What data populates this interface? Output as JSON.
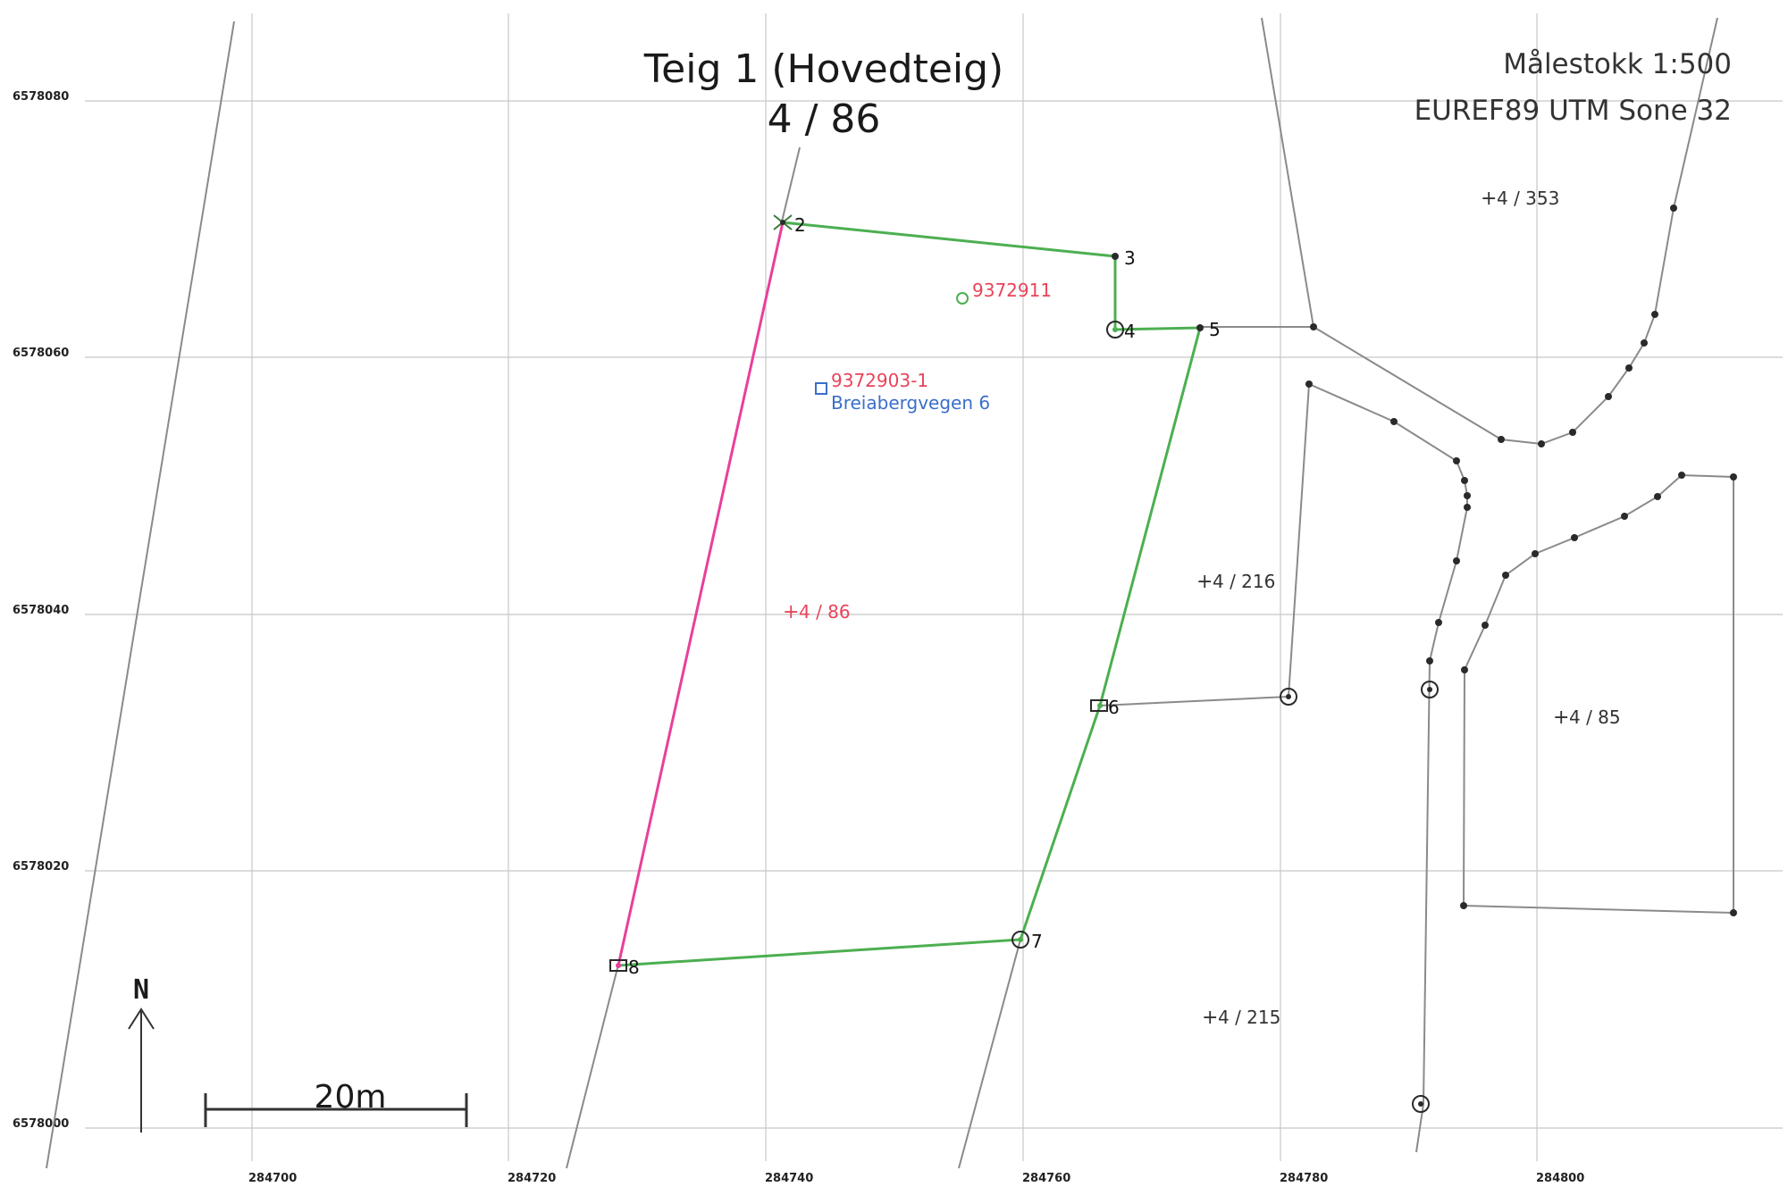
{
  "title": {
    "line1": "Teig 1 (Hovedteig)",
    "line2": "4 / 86"
  },
  "map_info": {
    "scale": "Målestokk 1:500",
    "crs": "EUREF89 UTM Sone 32"
  },
  "grid": {
    "x_labels": [
      "284700",
      "284720",
      "284740",
      "284760",
      "284780",
      "284800"
    ],
    "y_labels": [
      "6578080",
      "6578060",
      "6578040",
      "6578020",
      "6578000"
    ]
  },
  "boundary_points": [
    {
      "id": "2",
      "label": "2"
    },
    {
      "id": "3",
      "label": "3"
    },
    {
      "id": "4",
      "label": "4"
    },
    {
      "id": "5",
      "label": "5"
    },
    {
      "id": "6",
      "label": "6"
    },
    {
      "id": "7",
      "label": "7"
    },
    {
      "id": "8",
      "label": "8"
    }
  ],
  "parcel_labels": {
    "p353": "4 / 353",
    "p216": "4 / 216",
    "p85": "4 / 85",
    "p215": "4 / 215",
    "p86": "4 / 86"
  },
  "features": {
    "point_id": "9372911",
    "building_id": "9372903-1",
    "address": "Breiabergvegen 6"
  },
  "north_arrow": {
    "label": "N"
  },
  "scale_bar": {
    "label": "20m"
  },
  "colors": {
    "boundary_green": "#4caf50",
    "boundary_pink": "#e8409a",
    "red_text": "#e8445a",
    "blue_text": "#3a6fc8"
  }
}
